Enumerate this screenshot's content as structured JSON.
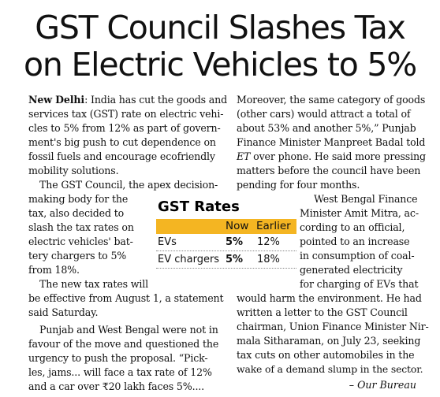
{
  "article": {
    "headline": {
      "line1": "GST Council Slashes Tax",
      "line2": "on Electric Vehicles to 5%"
    },
    "dateline": "New Delhi",
    "left_col": [
      ": India has cut the goods and",
      "services tax (GST) rate on electric vehi-",
      "cles to 5% from 12% as part of govern-",
      "ment's big push to cut dependence on",
      "fossil fuels and encourage ecofriendly",
      "mobility solutions.",
      "The GST Council, the apex decision-",
      "making body for the",
      "tax, also decided to",
      "slash the tax rates on",
      "electric vehicles' bat-",
      "tery chargers to 5%",
      "from 18%.",
      "The new tax rates will",
      "be effective from August 1, a statement",
      "said Saturday.",
      "Punjab and West Bengal were not in",
      "favour of the move and questioned the",
      "urgency to push the proposal. “Pick-",
      "les, jams... will face a tax rate of 12%",
      "and a car over ₹20 lakh faces 5%...."
    ],
    "right_col": [
      "Moreover, the same category of goods",
      "(other cars) would attract a total of",
      "about 53% and another 5%,” Punjab",
      "Finance Minister Manpreet Badal told",
      " over phone. He said more pressing",
      "matters before the council have been",
      "pending for four months.",
      "West Bengal Finance",
      "Minister Amit Mitra, ac-",
      "cording to an official,",
      "pointed to an increase",
      "in consumption of coal-",
      "generated electricity",
      "for charging of EVs that",
      "would harm the environment. He had",
      "written a letter to the GST Council",
      "chairman, Union Finance Minister Nir-",
      "mala Sitharaman, on July 23, seeking",
      "tax cuts on other automobiles in the",
      "wake of a demand slump in the sector."
    ],
    "et": "ET",
    "byline": "– Our Bureau"
  },
  "rates_box": {
    "title": "GST Rates",
    "header_now": "Now",
    "header_earlier": "Earlier",
    "header_color": "#f4b522",
    "rows": [
      {
        "label": "EVs",
        "now": "5%",
        "earlier": "12%"
      },
      {
        "label": "EV chargers",
        "now": "5%",
        "earlier": "18%"
      }
    ]
  }
}
